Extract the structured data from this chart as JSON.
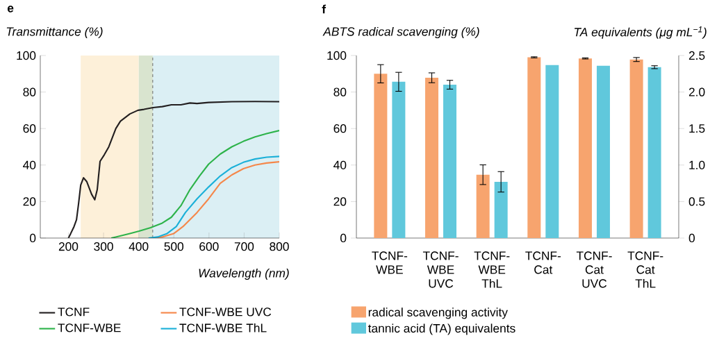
{
  "chart_data": [
    {
      "type": "line",
      "title": "e",
      "xlabel": "Wavelength (nm)",
      "ylabel": "Transmittance (%)",
      "xlim": [
        120,
        800
      ],
      "ylim": [
        0,
        100
      ],
      "xticks": [
        200,
        300,
        400,
        500,
        600,
        700,
        800
      ],
      "yticks": [
        0,
        20,
        40,
        60,
        80,
        100
      ],
      "legend": "bottom",
      "marker": "none",
      "line_style": "solid",
      "bands": [
        {
          "axis": "x",
          "from": 235,
          "to": 400,
          "color": "#fdf0d9"
        },
        {
          "axis": "x",
          "from": 400,
          "to": 440,
          "color": "#d9e4cf"
        },
        {
          "axis": "x",
          "from": 440,
          "to": 800,
          "color": "#dbeff4"
        }
      ],
      "ref_lines": [
        {
          "axis": "x",
          "value": 440,
          "color": "#666666",
          "line_style": "dashed"
        }
      ],
      "series": [
        {
          "name": "TCNF",
          "color": "#231f20",
          "x": [
            200,
            206.6,
            216,
            223,
            229,
            235,
            243,
            252,
            266,
            275,
            282,
            290,
            302,
            315,
            335,
            348,
            375,
            398,
            415,
            441,
            467,
            493,
            520,
            546,
            566,
            599,
            665,
            731,
            800
          ],
          "values": [
            0,
            2.5,
            6.3,
            10,
            19,
            29,
            33,
            31,
            24,
            21,
            26.5,
            42,
            45.6,
            50,
            60,
            64,
            68,
            70,
            70.5,
            71.5,
            72,
            73,
            73,
            74,
            73.7,
            74.3,
            74.7,
            74.8,
            74.7
          ]
        },
        {
          "name": "TCNF-WBE",
          "color": "#2db34a",
          "x": [
            322,
            335,
            375,
            401,
            434,
            467,
            493,
            520,
            546,
            573,
            599,
            632,
            665,
            698,
            731,
            764,
            800
          ],
          "values": [
            0,
            0.6,
            2.5,
            3.8,
            5.7,
            8.2,
            11.4,
            17.7,
            26.6,
            34,
            40.5,
            46,
            50,
            53,
            55.4,
            57.2,
            58.9
          ]
        },
        {
          "name": "TCNF-WBE UVC",
          "color": "#f5874a",
          "x": [
            434,
            467,
            500,
            526,
            566,
            599,
            632,
            665,
            698,
            731,
            764,
            800
          ],
          "values": [
            0,
            0.6,
            2.5,
            6.3,
            14,
            21.5,
            30,
            34.6,
            38,
            40,
            41.1,
            41.8
          ]
        },
        {
          "name": "TCNF-WBE ThL",
          "color": "#1bb0d8",
          "x": [
            428,
            454,
            481,
            507,
            533,
            566,
            599,
            632,
            665,
            698,
            731,
            764,
            800
          ],
          "values": [
            0,
            0.6,
            2.5,
            6.3,
            14,
            21.5,
            28,
            34,
            38.6,
            41.5,
            43.3,
            44.3,
            44.7
          ]
        }
      ]
    },
    {
      "type": "bar",
      "title": "f",
      "ylabel": "ABTS radical scavenging (%)",
      "y2label": "TA equivalents (μg mL$^{−1}$)",
      "categories": [
        "TCNF-WBE",
        "TCNF-WBE UVC",
        "TCNF-WBE ThL",
        "TCNF-Cat",
        "TCNF-Cat UVC",
        "TCNF-Cat ThL"
      ],
      "ylim": [
        0,
        100
      ],
      "yticks": [
        0,
        20,
        40,
        60,
        80,
        100
      ],
      "y2lim": [
        0,
        2.5
      ],
      "y2ticks": [
        0,
        0.5,
        {
          "value": 1,
          "label": "1.0"
        },
        1.5,
        {
          "value": 2,
          "label": "2.0"
        },
        2.5
      ],
      "legend": "bottom",
      "series": [
        {
          "name": "radical scavenging activity",
          "color": "#f7a46e",
          "values": [
            90,
            87.8,
            34.7,
            99,
            98.4,
            97.8
          ],
          "errors": [
            5,
            2.7,
            5.4,
            0.3,
            0.3,
            1.1
          ]
        },
        {
          "name": "tannic acid (TA) equivalents",
          "color": "#60c8dc",
          "axis": "y2",
          "values": [
            2.14,
            2.1,
            0.77,
            2.37,
            2.36,
            2.34
          ],
          "errors": [
            0.13,
            0.06,
            0.14,
            null,
            null,
            0.02
          ]
        }
      ]
    }
  ]
}
